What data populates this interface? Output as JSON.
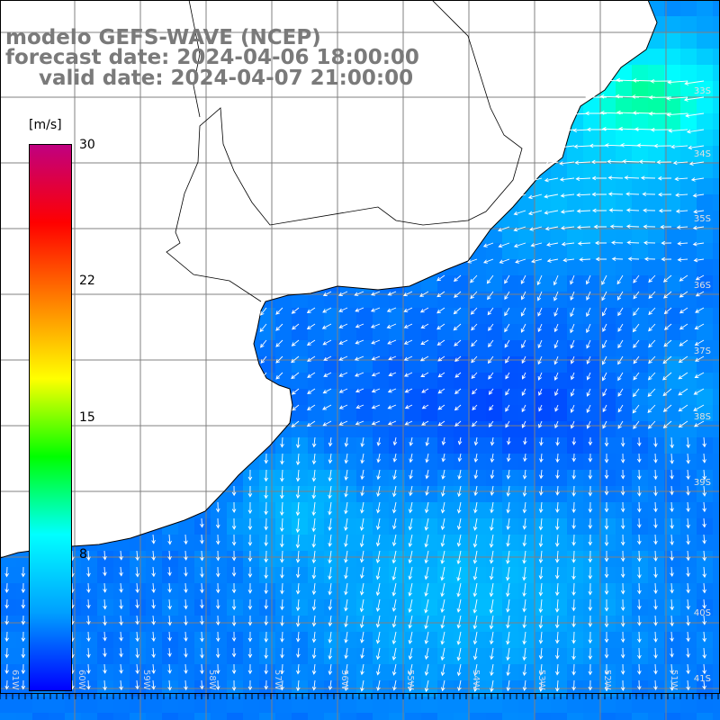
{
  "header": {
    "line1": "modelo GEFS-WAVE (NCEP)",
    "line2": "forecast date: 2024-04-06 18:00:00",
    "line3": "valid date: 2024-04-07 21:00:00"
  },
  "colorbar": {
    "unit": "[m/s]",
    "ticks": [
      "30",
      "22",
      "15",
      "8"
    ],
    "tick_values": [
      30,
      22,
      15,
      8
    ],
    "min": 0,
    "max": 30,
    "colors": [
      "#0000ff",
      "#00a0ff",
      "#00ffff",
      "#00ff00",
      "#ffff00",
      "#ff8000",
      "#ff0000",
      "#c00080"
    ]
  },
  "map": {
    "field": "wind speed",
    "lat_labels": [
      "33S",
      "34S",
      "35S",
      "36S",
      "37S",
      "38S",
      "39S",
      "40S",
      "41S"
    ],
    "lon_labels": [
      "61W",
      "60W",
      "59W",
      "58W",
      "57W",
      "56W",
      "55W",
      "54W",
      "53W",
      "52W",
      "51W"
    ],
    "land_color": "#ffffff",
    "grid_color": "#808080",
    "coast_color": "#000000",
    "arrow_color": "#ffffff"
  }
}
